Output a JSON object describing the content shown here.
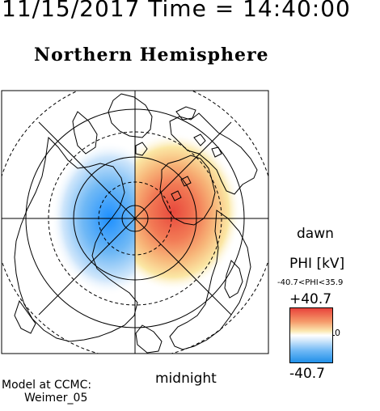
{
  "header": {
    "timestamp": "11/15/2017 Time = 14:40:00",
    "title": "Northern Hemisphere"
  },
  "map": {
    "bottom_label": "midnight",
    "right_label": "dawn",
    "field": {
      "negative_cell_color": "#1e90ff",
      "positive_cell_color": "#e8483c"
    }
  },
  "colorbar": {
    "label": "PHI [kV]",
    "range_text": "-40.7<PHI<35.9",
    "max_label": "+40.7",
    "min_label": "-40.7",
    "zero_label": "0",
    "colors": {
      "top": "#e8403a",
      "middle": "#ffffff",
      "bottom": "#1e8ee8"
    }
  },
  "footer": {
    "model_line1": "Model at CCMC:",
    "model_line2": "Weimer_05"
  }
}
